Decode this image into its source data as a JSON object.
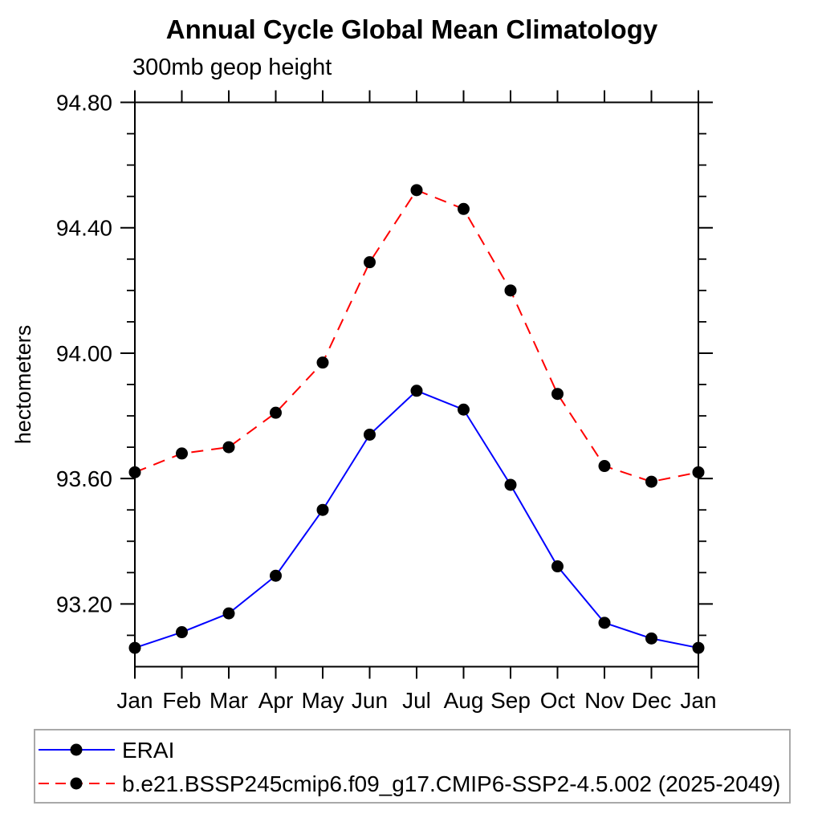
{
  "chart_data": {
    "type": "line",
    "title": "Annual Cycle Global Mean Climatology",
    "subtitle": "300mb geop height",
    "ylabel": "hectometers",
    "xlabel": "",
    "categories": [
      "Jan",
      "Feb",
      "Mar",
      "Apr",
      "May",
      "Jun",
      "Jul",
      "Aug",
      "Sep",
      "Oct",
      "Nov",
      "Dec",
      "Jan"
    ],
    "series": [
      {
        "name": "ERAI",
        "color": "#0000ff",
        "line_style": "solid",
        "marker": "filled-circle",
        "marker_color": "#000000",
        "values": [
          93.06,
          93.11,
          93.17,
          93.29,
          93.5,
          93.74,
          93.88,
          93.82,
          93.58,
          93.32,
          93.14,
          93.09,
          93.06
        ]
      },
      {
        "name": "b.e21.BSSP245cmip6.f09_g17.CMIP6-SSP2-4.5.002 (2025-2049)",
        "color": "#ff0000",
        "line_style": "dashed",
        "marker": "filled-circle",
        "marker_color": "#000000",
        "values": [
          93.62,
          93.68,
          93.7,
          93.81,
          93.97,
          94.29,
          94.52,
          94.46,
          94.2,
          93.87,
          93.64,
          93.59,
          93.62
        ]
      }
    ],
    "ylim": [
      93.0,
      94.8
    ],
    "ytick_major_values": [
      93.2,
      93.6,
      94.0,
      94.4,
      94.8
    ],
    "ytick_major_labels": [
      "93.20",
      "93.60",
      "94.00",
      "94.40",
      "94.80"
    ],
    "ytick_minor_step": 0.1,
    "grid": false,
    "frame": "box-with-outward-ticks",
    "legend_position": "bottom-left-box",
    "axis_color": "#000000",
    "legend_border_color": "#a9a9a9"
  }
}
